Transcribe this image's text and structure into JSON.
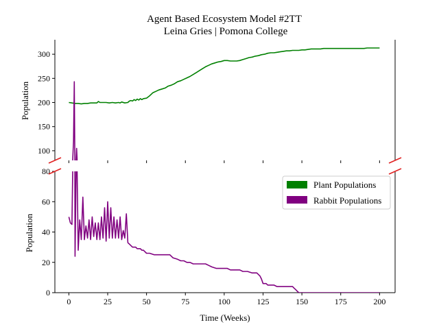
{
  "chart_data": {
    "type": "line",
    "title": "Agent Based Ecosystem Model #2TT",
    "subtitle": "Leina Gries | Pomona College",
    "xlabel": "Time (Weeks)",
    "ylabel_top": "Population",
    "ylabel_bottom": "Population",
    "xlim": [
      -9,
      210
    ],
    "x_ticks": [
      0,
      25,
      50,
      75,
      100,
      125,
      150,
      175,
      200
    ],
    "top_panel": {
      "ylim": [
        80,
        330
      ],
      "y_ticks": [
        100,
        150,
        200,
        250,
        300
      ]
    },
    "bottom_panel": {
      "ylim": [
        0,
        80
      ],
      "y_ticks": [
        0,
        20,
        40,
        60,
        80
      ]
    },
    "broken_y_axis": true,
    "grid": false,
    "legend_position": "upper-right",
    "series": [
      {
        "name": "Plant Populations",
        "color": "#008000",
        "points": [
          [
            0,
            200
          ],
          [
            2,
            199
          ],
          [
            4,
            198
          ],
          [
            6,
            198
          ],
          [
            8,
            197
          ],
          [
            10,
            198
          ],
          [
            12,
            198
          ],
          [
            14,
            199
          ],
          [
            16,
            199
          ],
          [
            18,
            199
          ],
          [
            19,
            202
          ],
          [
            20,
            200
          ],
          [
            22,
            200
          ],
          [
            24,
            200
          ],
          [
            26,
            199
          ],
          [
            28,
            200
          ],
          [
            30,
            199
          ],
          [
            32,
            200
          ],
          [
            33,
            199
          ],
          [
            34,
            201
          ],
          [
            36,
            199
          ],
          [
            38,
            200
          ],
          [
            39,
            203
          ],
          [
            40,
            204
          ],
          [
            41,
            203
          ],
          [
            42,
            206
          ],
          [
            43,
            204
          ],
          [
            44,
            207
          ],
          [
            45,
            205
          ],
          [
            46,
            208
          ],
          [
            47,
            206
          ],
          [
            48,
            208
          ],
          [
            50,
            209
          ],
          [
            52,
            214
          ],
          [
            54,
            220
          ],
          [
            56,
            223
          ],
          [
            58,
            226
          ],
          [
            60,
            228
          ],
          [
            62,
            230
          ],
          [
            64,
            234
          ],
          [
            66,
            236
          ],
          [
            68,
            239
          ],
          [
            70,
            243
          ],
          [
            72,
            245
          ],
          [
            74,
            248
          ],
          [
            76,
            251
          ],
          [
            78,
            254
          ],
          [
            80,
            258
          ],
          [
            82,
            262
          ],
          [
            84,
            266
          ],
          [
            86,
            270
          ],
          [
            88,
            274
          ],
          [
            90,
            277
          ],
          [
            92,
            280
          ],
          [
            94,
            282
          ],
          [
            96,
            284
          ],
          [
            98,
            285
          ],
          [
            100,
            287
          ],
          [
            102,
            287
          ],
          [
            104,
            286
          ],
          [
            106,
            286
          ],
          [
            108,
            286
          ],
          [
            110,
            287
          ],
          [
            112,
            289
          ],
          [
            114,
            291
          ],
          [
            116,
            293
          ],
          [
            118,
            294
          ],
          [
            120,
            296
          ],
          [
            122,
            297
          ],
          [
            124,
            299
          ],
          [
            126,
            300
          ],
          [
            128,
            302
          ],
          [
            130,
            303
          ],
          [
            132,
            303
          ],
          [
            134,
            304
          ],
          [
            136,
            305
          ],
          [
            138,
            306
          ],
          [
            140,
            307
          ],
          [
            142,
            307
          ],
          [
            144,
            308
          ],
          [
            146,
            308
          ],
          [
            148,
            308
          ],
          [
            150,
            309
          ],
          [
            152,
            309
          ],
          [
            154,
            310
          ],
          [
            156,
            311
          ],
          [
            158,
            311
          ],
          [
            160,
            311
          ],
          [
            162,
            311
          ],
          [
            164,
            312
          ],
          [
            166,
            312
          ],
          [
            170,
            312
          ],
          [
            175,
            312
          ],
          [
            180,
            312
          ],
          [
            185,
            312
          ],
          [
            190,
            312
          ],
          [
            192,
            313
          ],
          [
            196,
            313
          ],
          [
            200,
            313
          ]
        ]
      },
      {
        "name": "Rabbit Populations",
        "color": "#800080",
        "points": [
          [
            0,
            50
          ],
          [
            1,
            46
          ],
          [
            2,
            45
          ],
          [
            3,
            120
          ],
          [
            3.5,
            243
          ],
          [
            4,
            24
          ],
          [
            5,
            105
          ],
          [
            6,
            28
          ],
          [
            7,
            48
          ],
          [
            8,
            35
          ],
          [
            9,
            63
          ],
          [
            10,
            35
          ],
          [
            11,
            44
          ],
          [
            12,
            36
          ],
          [
            13,
            48
          ],
          [
            14,
            35
          ],
          [
            15,
            50
          ],
          [
            16,
            37
          ],
          [
            17,
            46
          ],
          [
            18,
            35
          ],
          [
            19,
            46
          ],
          [
            20,
            35
          ],
          [
            21,
            50
          ],
          [
            22,
            36
          ],
          [
            23,
            56
          ],
          [
            24,
            34
          ],
          [
            25,
            60
          ],
          [
            26,
            36
          ],
          [
            27,
            56
          ],
          [
            28,
            36
          ],
          [
            29,
            50
          ],
          [
            30,
            36
          ],
          [
            31,
            48
          ],
          [
            32,
            36
          ],
          [
            33,
            50
          ],
          [
            34,
            35
          ],
          [
            35,
            41
          ],
          [
            36,
            36
          ],
          [
            37,
            52
          ],
          [
            38,
            33
          ],
          [
            39,
            32
          ],
          [
            40,
            31
          ],
          [
            41,
            30
          ],
          [
            43,
            30
          ],
          [
            44,
            29
          ],
          [
            46,
            29
          ],
          [
            47,
            28
          ],
          [
            48,
            28
          ],
          [
            49,
            27
          ],
          [
            50,
            26
          ],
          [
            52,
            26
          ],
          [
            55,
            25
          ],
          [
            60,
            25
          ],
          [
            65,
            25
          ],
          [
            66,
            24
          ],
          [
            67,
            23
          ],
          [
            70,
            22
          ],
          [
            72,
            21
          ],
          [
            74,
            21
          ],
          [
            76,
            20
          ],
          [
            78,
            20
          ],
          [
            80,
            19
          ],
          [
            85,
            19
          ],
          [
            88,
            19
          ],
          [
            90,
            18
          ],
          [
            92,
            17
          ],
          [
            95,
            16
          ],
          [
            100,
            16
          ],
          [
            102,
            16
          ],
          [
            104,
            15
          ],
          [
            110,
            15
          ],
          [
            112,
            14
          ],
          [
            115,
            14
          ],
          [
            118,
            13
          ],
          [
            121,
            13
          ],
          [
            123,
            11
          ],
          [
            124,
            9
          ],
          [
            125,
            6
          ],
          [
            127,
            6
          ],
          [
            128,
            5
          ],
          [
            132,
            5
          ],
          [
            134,
            4
          ],
          [
            140,
            4
          ],
          [
            144,
            4
          ],
          [
            145,
            3
          ],
          [
            146,
            2
          ],
          [
            147,
            1
          ],
          [
            148,
            0
          ],
          [
            150,
            0
          ],
          [
            160,
            0
          ],
          [
            180,
            0
          ],
          [
            200,
            0
          ]
        ]
      }
    ]
  }
}
